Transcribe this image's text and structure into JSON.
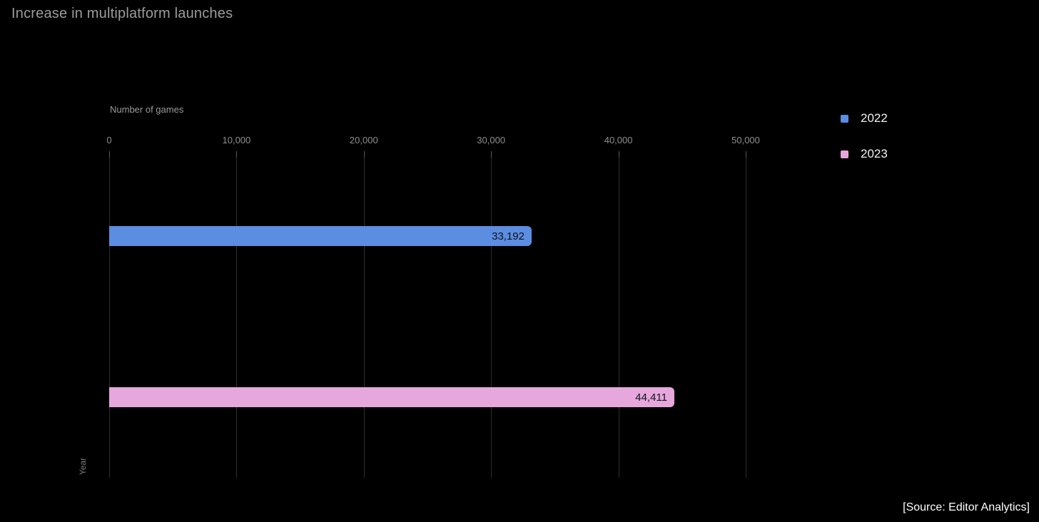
{
  "title": "Increase in multiplatform launches",
  "source_note": "[Source: Editor Analytics]",
  "colors": {
    "background": "#000000",
    "title_text": "#9c9c9c",
    "tick_text": "#8f8f8f",
    "gridline": "#2e2e2e",
    "bar_2022": "#5b8de1",
    "bar_2023": "#e6a7dc",
    "bar_value_text": "#0f1218",
    "legend_text": "#f0f0f0"
  },
  "legend": [
    {
      "label": "2022",
      "color": "#5b8de1"
    },
    {
      "label": "2023",
      "color": "#e6a7dc"
    }
  ],
  "chart_data": {
    "type": "bar",
    "orientation": "horizontal",
    "title": "Increase in multiplatform launches",
    "xlabel": "Number of games",
    "ylabel": "Year",
    "categories": [
      "2022",
      "2023"
    ],
    "values": [
      33192,
      44411
    ],
    "value_labels": [
      "33,192",
      "44,411"
    ],
    "bar_colors": [
      "#5b8de1",
      "#e6a7dc"
    ],
    "xlim": [
      0,
      50000
    ],
    "xticks": [
      0,
      10000,
      20000,
      30000,
      40000,
      50000
    ],
    "xtick_labels": [
      "0",
      "10,000",
      "20,000",
      "30,000",
      "40,000",
      "50,000"
    ],
    "grid": "vertical",
    "legend_position": "right",
    "source": "[Source: Editor Analytics]"
  }
}
